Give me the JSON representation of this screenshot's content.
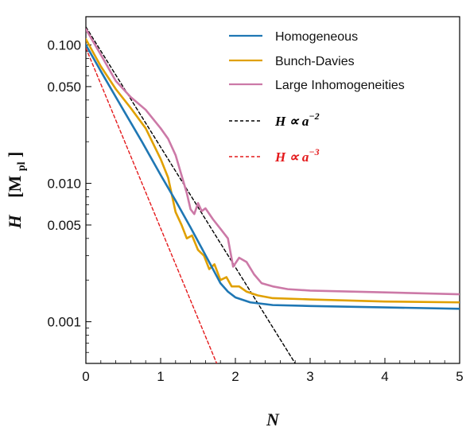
{
  "chart_data": {
    "type": "line",
    "xlabel": "N",
    "ylabel": "H  [M_pl]",
    "ylabel_main": "H",
    "ylabel_unit": "[M",
    "ylabel_unit_sub": "pl",
    "ylabel_unit_close": "]",
    "xlim": [
      0,
      5
    ],
    "ylim": [
      0.0005,
      0.16
    ],
    "yscale": "log",
    "grid": false,
    "legend_position": "top-right",
    "x_ticks": [
      0,
      1,
      2,
      3,
      4,
      5
    ],
    "x_tick_labels": [
      "0",
      "1",
      "2",
      "3",
      "4",
      "5"
    ],
    "y_ticks": [
      0.001,
      0.005,
      0.01,
      0.05,
      0.1
    ],
    "y_tick_labels": [
      "0.001",
      "0.005",
      "0.010",
      "0.050",
      "0.100"
    ],
    "series": [
      {
        "name": "Homogeneous",
        "color": "#1f77b4",
        "style": "solid",
        "x": [
          0,
          0.25,
          0.5,
          0.75,
          1.0,
          1.2,
          1.4,
          1.55,
          1.7,
          1.8,
          1.9,
          2.0,
          2.2,
          2.5,
          3.0,
          4.0,
          5.0
        ],
        "y": [
          0.1,
          0.058,
          0.034,
          0.02,
          0.0115,
          0.0075,
          0.0048,
          0.0034,
          0.0024,
          0.0019,
          0.00165,
          0.0015,
          0.00138,
          0.00132,
          0.0013,
          0.00127,
          0.00124
        ]
      },
      {
        "name": "Bunch-Davies",
        "color": "#e0a000",
        "style": "solid",
        "x": [
          0,
          0.2,
          0.4,
          0.6,
          0.8,
          1.0,
          1.1,
          1.2,
          1.28,
          1.35,
          1.42,
          1.5,
          1.58,
          1.65,
          1.72,
          1.8,
          1.88,
          1.95,
          2.05,
          2.15,
          2.3,
          2.5,
          3.0,
          4.0,
          5.0
        ],
        "y": [
          0.11,
          0.07,
          0.048,
          0.035,
          0.025,
          0.015,
          0.011,
          0.0062,
          0.005,
          0.004,
          0.0042,
          0.0033,
          0.003,
          0.0024,
          0.0026,
          0.002,
          0.0021,
          0.0018,
          0.0018,
          0.00165,
          0.00155,
          0.00148,
          0.00145,
          0.0014,
          0.00138
        ]
      },
      {
        "name": "Large Inhomogeneities",
        "color": "#cc79a7",
        "style": "solid",
        "x": [
          0,
          0.2,
          0.4,
          0.6,
          0.8,
          1.0,
          1.1,
          1.2,
          1.3,
          1.35,
          1.4,
          1.45,
          1.5,
          1.55,
          1.6,
          1.7,
          1.8,
          1.9,
          1.97,
          2.05,
          2.15,
          2.25,
          2.35,
          2.5,
          2.7,
          3.0,
          4.0,
          5.0
        ],
        "y": [
          0.13,
          0.085,
          0.055,
          0.042,
          0.034,
          0.025,
          0.021,
          0.016,
          0.0105,
          0.0085,
          0.0065,
          0.006,
          0.0072,
          0.0063,
          0.0066,
          0.0055,
          0.0047,
          0.004,
          0.0025,
          0.0029,
          0.0027,
          0.0022,
          0.0019,
          0.0018,
          0.00172,
          0.00168,
          0.00163,
          0.00158
        ]
      },
      {
        "name": "H ∝ a^−2",
        "label_main": "H ∝ a",
        "label_exp": "−2",
        "color": "#000000",
        "style": "dashed",
        "x": [
          0,
          2.8
        ],
        "y": [
          0.135,
          0.0005
        ]
      },
      {
        "name": "H ∝ a^−3",
        "label_main": "H ∝ a",
        "label_exp": "−3",
        "color": "#e41a1c",
        "style": "dashed",
        "x": [
          0,
          1.75
        ],
        "y": [
          0.095,
          0.0005
        ]
      }
    ]
  }
}
